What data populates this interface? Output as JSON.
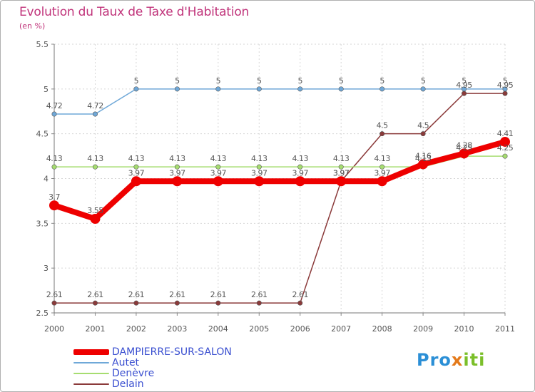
{
  "header": {
    "title": "Evolution du Taux de Taxe d'Habitation",
    "subtitle": "(en %)"
  },
  "chart_data": {
    "type": "line",
    "title": "Evolution du Taux de Taxe d'Habitation",
    "ylabel": "(en %)",
    "xlabel": "",
    "ylim": [
      2.5,
      5.5
    ],
    "yticks": [
      "2.5",
      "3",
      "3.5",
      "4",
      "4.5",
      "5",
      "5.5"
    ],
    "categories": [
      "2000",
      "2001",
      "2002",
      "2003",
      "2004",
      "2005",
      "2006",
      "2007",
      "2008",
      "2009",
      "2010",
      "2011"
    ],
    "grid": true,
    "series": [
      {
        "name": "DAMPIERRE-SUR-SALON",
        "color": "#ee0000",
        "values": [
          3.7,
          3.55,
          3.97,
          3.97,
          3.97,
          3.97,
          3.97,
          3.97,
          3.97,
          4.16,
          4.28,
          4.41
        ],
        "labels": [
          "3.7",
          "3.55",
          "3.97",
          "3.97",
          "3.97",
          "3.97",
          "3.97",
          "3.97",
          "3.97",
          "4.16",
          "4.28",
          "4.41"
        ]
      },
      {
        "name": "Autet",
        "color": "#6fa8d8",
        "values": [
          4.72,
          4.72,
          5,
          5,
          5,
          5,
          5,
          5,
          5,
          5,
          5,
          5
        ],
        "labels": [
          "4.72",
          "4.72",
          "5",
          "5",
          "5",
          "5",
          "5",
          "5",
          "5",
          "5",
          "5",
          "5"
        ]
      },
      {
        "name": "Denèvre",
        "color": "#a6dd70",
        "values": [
          4.13,
          4.13,
          4.13,
          4.13,
          4.13,
          4.13,
          4.13,
          4.13,
          4.13,
          4.13,
          4.25,
          4.25
        ],
        "labels": [
          "4.13",
          "4.13",
          "4.13",
          "4.13",
          "4.13",
          "4.13",
          "4.13",
          "4.13",
          "4.13",
          "4.13",
          "4.25",
          "4.25"
        ]
      },
      {
        "name": "Delain",
        "color": "#8b3a3a",
        "values": [
          2.61,
          2.61,
          2.61,
          2.61,
          2.61,
          2.61,
          2.61,
          3.97,
          4.5,
          4.5,
          4.95,
          4.95
        ],
        "labels": [
          "2.61",
          "2.61",
          "2.61",
          "2.61",
          "2.61",
          "2.61",
          "2.61",
          "3.97",
          "4.5",
          "4.5",
          "4.95",
          "4.95"
        ]
      }
    ],
    "legend": "bottom-left"
  },
  "logo": {
    "part1": "Pro",
    "part2": "x",
    "part3": "iti"
  }
}
